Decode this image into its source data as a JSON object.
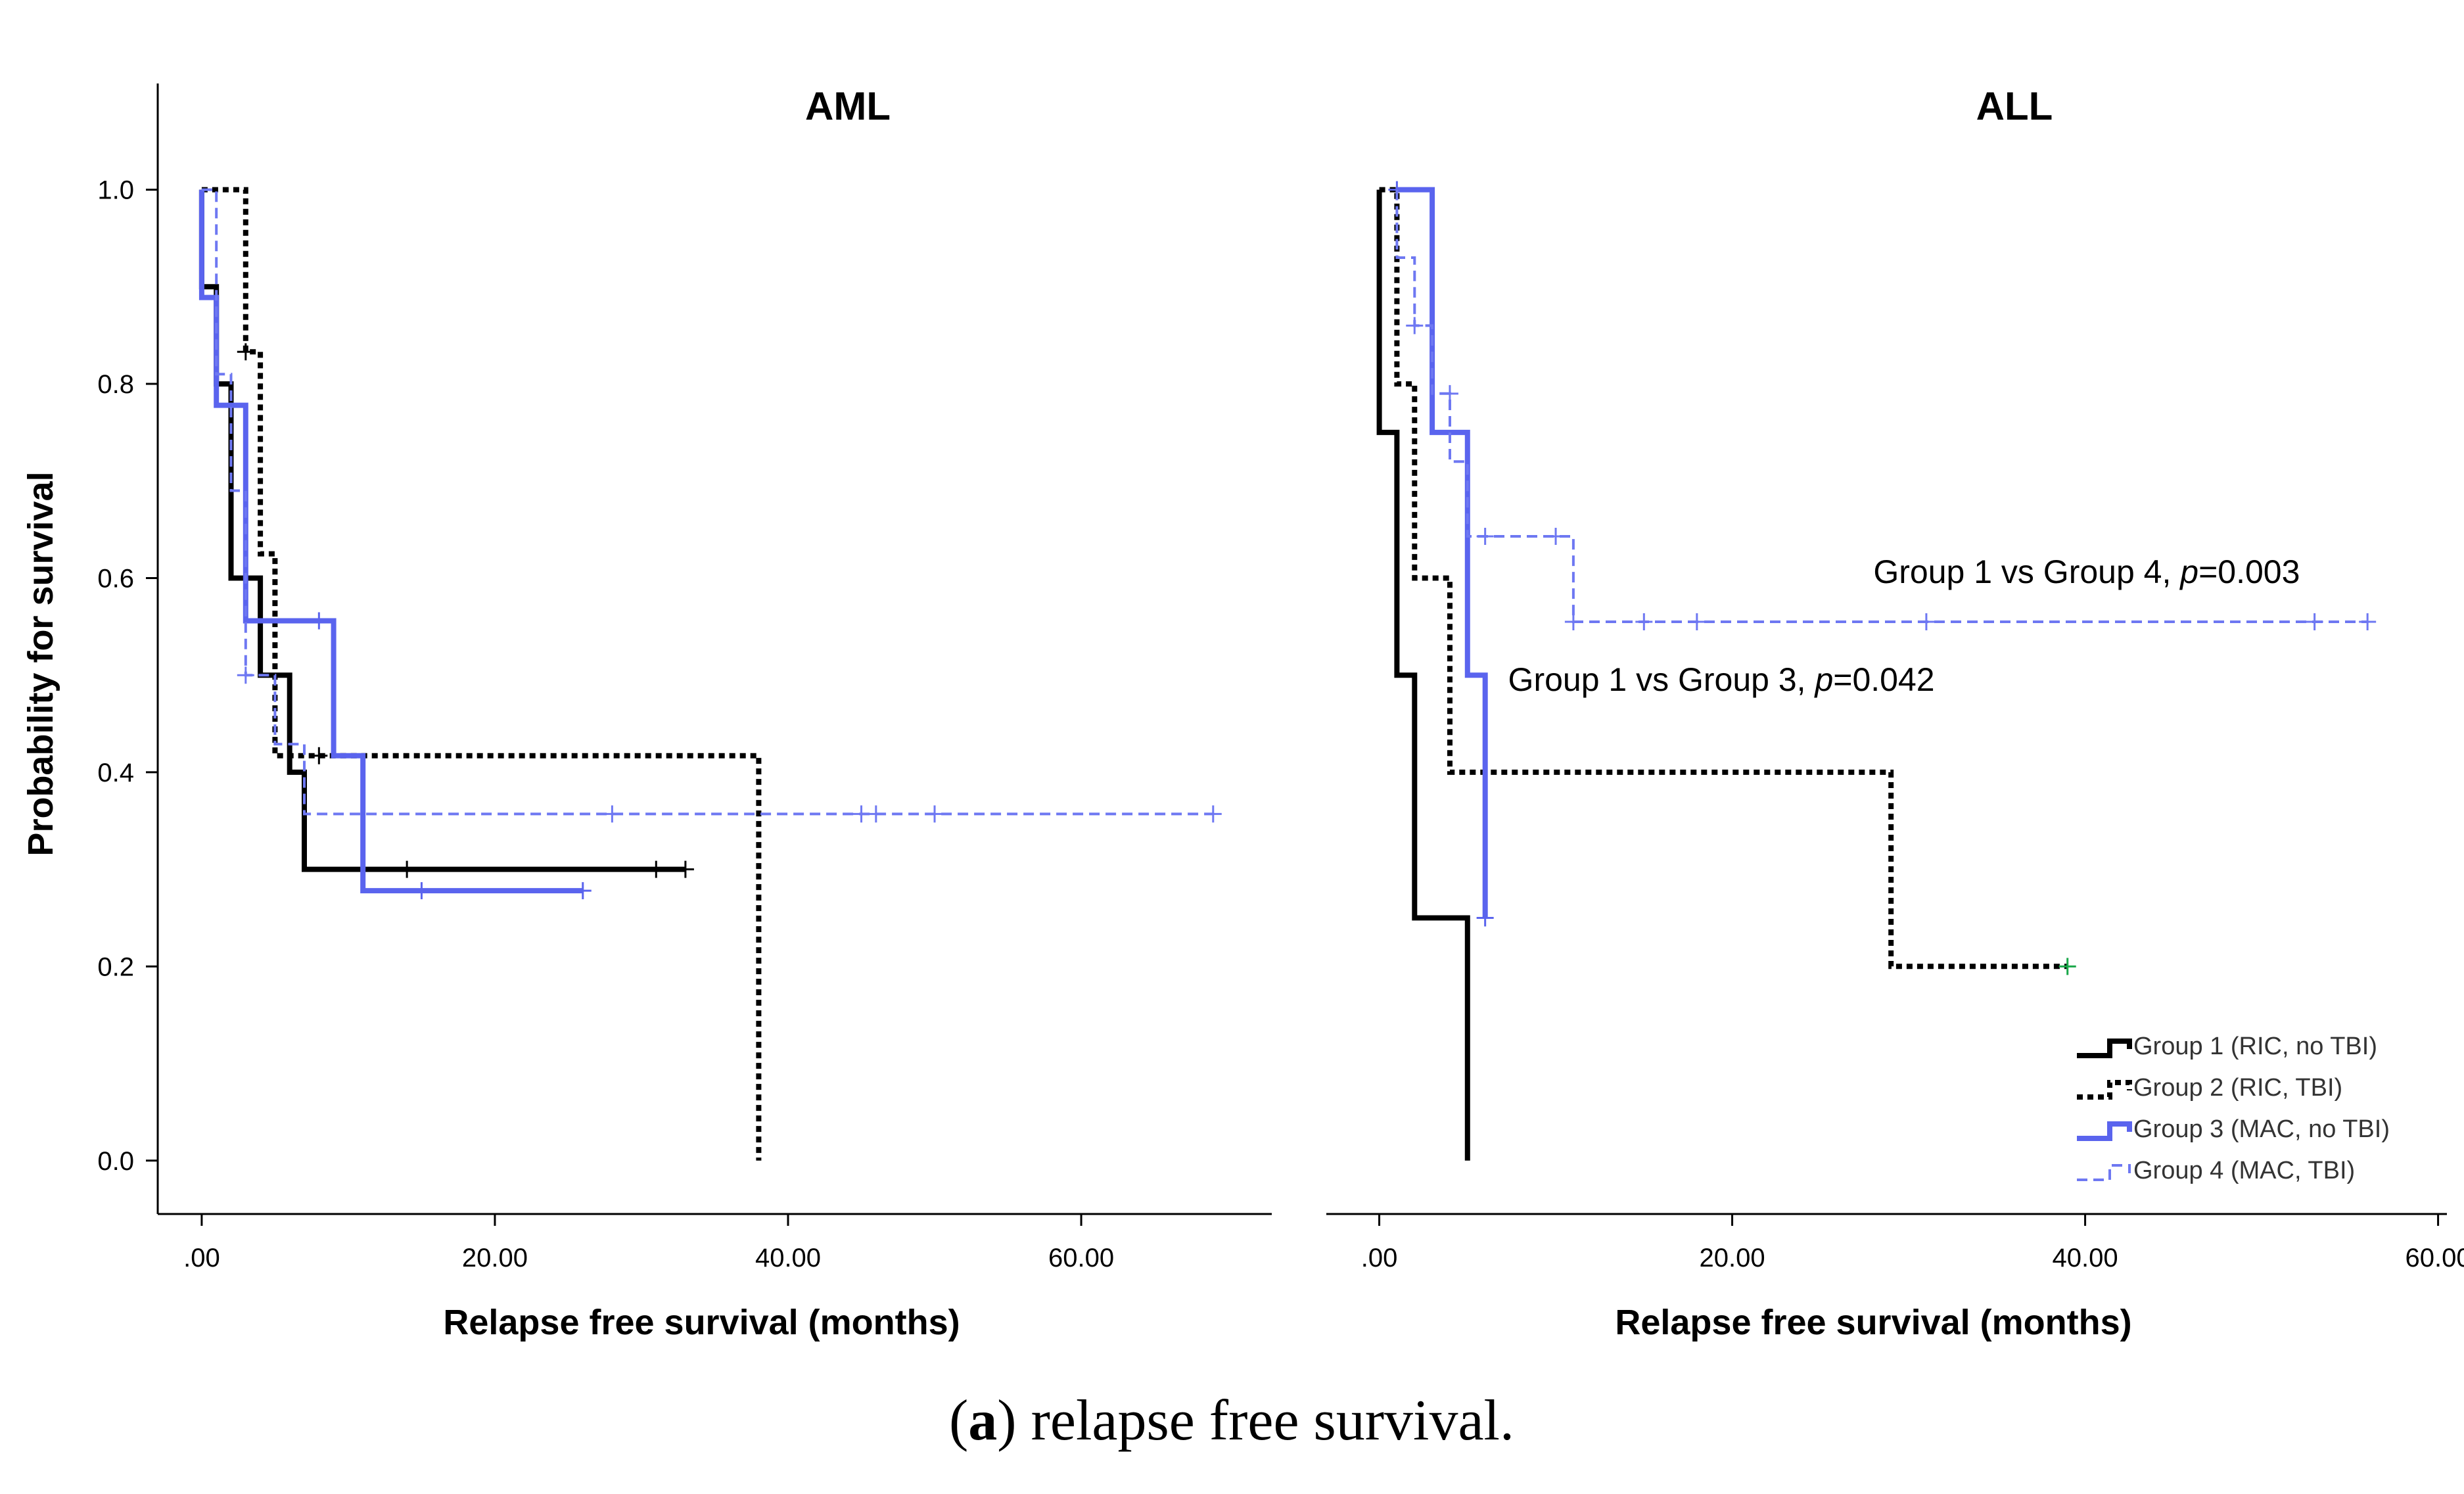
{
  "caption": {
    "label": "a",
    "open": "(",
    "close": ")",
    "text": " relapse free survival."
  },
  "legend": [
    {
      "id": "g1",
      "label": "Group 1 (RIC, no TBI)",
      "color": "#000000",
      "dash": "solid",
      "width": "thick"
    },
    {
      "id": "g2",
      "label": "Group 2 (RIC, TBI)",
      "color": "#000000",
      "dash": "dotted",
      "width": "thick"
    },
    {
      "id": "g3",
      "label": "Group 3 (MAC, no TBI)",
      "color": "#5a64ee",
      "dash": "solid",
      "width": "thick"
    },
    {
      "id": "g4",
      "label": "Group 4 (MAC, TBI)",
      "color": "#6e78f2",
      "dash": "dashed",
      "width": "thin"
    }
  ],
  "chart_data": [
    {
      "type": "line",
      "subtype": "kaplan-meier-step",
      "title": "AML",
      "xlabel": "Relapse free survival (months)",
      "ylabel": "Probability for survival",
      "xlim": [
        -3,
        73
      ],
      "ylim": [
        -0.055,
        1.06
      ],
      "xticks": [
        0,
        20,
        40,
        60
      ],
      "xtick_labels": [
        ".00",
        "20.00",
        "40.00",
        "60.00"
      ],
      "yticks": [
        0.0,
        0.2,
        0.4,
        0.6,
        0.8,
        1.0
      ],
      "ytick_labels": [
        "0.0",
        "0.2",
        "0.4",
        "0.6",
        "0.8",
        "1.0"
      ],
      "series": [
        {
          "group": "g1",
          "steps": [
            [
              0,
              1.0
            ],
            [
              0,
              0.9
            ],
            [
              1,
              0.9
            ],
            [
              1,
              0.8
            ],
            [
              2,
              0.8
            ],
            [
              2,
              0.6
            ],
            [
              4,
              0.6
            ],
            [
              4,
              0.5
            ],
            [
              6,
              0.5
            ],
            [
              6,
              0.4
            ],
            [
              7,
              0.4
            ],
            [
              7,
              0.3
            ],
            [
              33,
              0.3
            ]
          ],
          "censored": [
            [
              14,
              0.3
            ],
            [
              31,
              0.3
            ],
            [
              33,
              0.3
            ]
          ]
        },
        {
          "group": "g2",
          "steps": [
            [
              0,
              1.0
            ],
            [
              3,
              1.0
            ],
            [
              3,
              0.833
            ],
            [
              4,
              0.833
            ],
            [
              4,
              0.625
            ],
            [
              5,
              0.625
            ],
            [
              5,
              0.417
            ],
            [
              38,
              0.417
            ],
            [
              38,
              0.0
            ]
          ],
          "censored": [
            [
              3,
              0.833
            ],
            [
              8,
              0.417
            ]
          ]
        },
        {
          "group": "g3",
          "steps": [
            [
              0,
              1.0
            ],
            [
              0,
              0.889
            ],
            [
              1,
              0.889
            ],
            [
              1,
              0.778
            ],
            [
              3,
              0.778
            ],
            [
              3,
              0.556
            ],
            [
              9,
              0.556
            ],
            [
              9,
              0.417
            ],
            [
              11,
              0.417
            ],
            [
              11,
              0.278
            ],
            [
              26,
              0.278
            ]
          ],
          "censored": [
            [
              8,
              0.556
            ],
            [
              15,
              0.278
            ],
            [
              26,
              0.278
            ]
          ]
        },
        {
          "group": "g4",
          "steps": [
            [
              0,
              1.0
            ],
            [
              1,
              1.0
            ],
            [
              1,
              0.81
            ],
            [
              2,
              0.81
            ],
            [
              2,
              0.69
            ],
            [
              3,
              0.69
            ],
            [
              3,
              0.5
            ],
            [
              5,
              0.5
            ],
            [
              5,
              0.429
            ],
            [
              7,
              0.429
            ],
            [
              7,
              0.357
            ],
            [
              69,
              0.357
            ]
          ],
          "censored": [
            [
              3,
              0.5
            ],
            [
              28,
              0.357
            ],
            [
              45,
              0.357
            ],
            [
              46,
              0.357
            ],
            [
              50,
              0.357
            ],
            [
              69,
              0.357
            ]
          ]
        }
      ],
      "annotations": []
    },
    {
      "type": "line",
      "subtype": "kaplan-meier-step",
      "title": "ALL",
      "xlabel": "Relapse free survival (months)",
      "ylabel": "",
      "xlim": [
        -3,
        60.5
      ],
      "ylim": [
        -0.055,
        1.06
      ],
      "xticks": [
        0,
        20,
        40,
        60
      ],
      "xtick_labels": [
        ".00",
        "20.00",
        "40.00",
        "60.00"
      ],
      "yticks": [],
      "ytick_labels": [],
      "series": [
        {
          "group": "g1",
          "steps": [
            [
              0,
              1.0
            ],
            [
              0,
              0.75
            ],
            [
              1,
              0.75
            ],
            [
              1,
              0.5
            ],
            [
              2,
              0.5
            ],
            [
              2,
              0.25
            ],
            [
              5,
              0.25
            ],
            [
              5,
              0.0
            ]
          ],
          "censored": []
        },
        {
          "group": "g2",
          "steps": [
            [
              0,
              1.0
            ],
            [
              1,
              1.0
            ],
            [
              1,
              0.8
            ],
            [
              2,
              0.8
            ],
            [
              2,
              0.6
            ],
            [
              4,
              0.6
            ],
            [
              4,
              0.4
            ],
            [
              29,
              0.4
            ],
            [
              29,
              0.2
            ],
            [
              39,
              0.2
            ]
          ],
          "censored": [
            [
              39,
              0.2
            ]
          ]
        },
        {
          "group": "g3",
          "steps": [
            [
              1,
              1.0
            ],
            [
              3,
              1.0
            ],
            [
              3,
              0.75
            ],
            [
              5,
              0.75
            ],
            [
              5,
              0.5
            ],
            [
              6,
              0.5
            ],
            [
              6,
              0.25
            ]
          ],
          "censored": [
            [
              1,
              1.0
            ],
            [
              6,
              0.25
            ]
          ]
        },
        {
          "group": "g4",
          "steps": [
            [
              1,
              1.0
            ],
            [
              1,
              0.93
            ],
            [
              2,
              0.93
            ],
            [
              2,
              0.86
            ],
            [
              3,
              0.86
            ],
            [
              3,
              0.79
            ],
            [
              4,
              0.79
            ],
            [
              4,
              0.72
            ],
            [
              5,
              0.72
            ],
            [
              5,
              0.643
            ],
            [
              11,
              0.643
            ],
            [
              11,
              0.555
            ],
            [
              56,
              0.555
            ]
          ],
          "censored": [
            [
              2,
              0.86
            ],
            [
              4,
              0.79
            ],
            [
              6,
              0.643
            ],
            [
              10,
              0.643
            ],
            [
              11,
              0.555
            ],
            [
              15,
              0.555
            ],
            [
              18,
              0.555
            ],
            [
              31,
              0.555
            ],
            [
              53,
              0.555
            ],
            [
              56,
              0.555
            ]
          ]
        }
      ],
      "annotations": [
        {
          "prefix": "Group 1 vs Group 4, ",
          "italic": "p",
          "suffix": "=0.003",
          "x": 28,
          "y": 0.595
        },
        {
          "prefix": "Group 1 vs Group 3, ",
          "italic": "p",
          "suffix": "=0.042",
          "x": 7.3,
          "y": 0.484
        }
      ]
    }
  ]
}
